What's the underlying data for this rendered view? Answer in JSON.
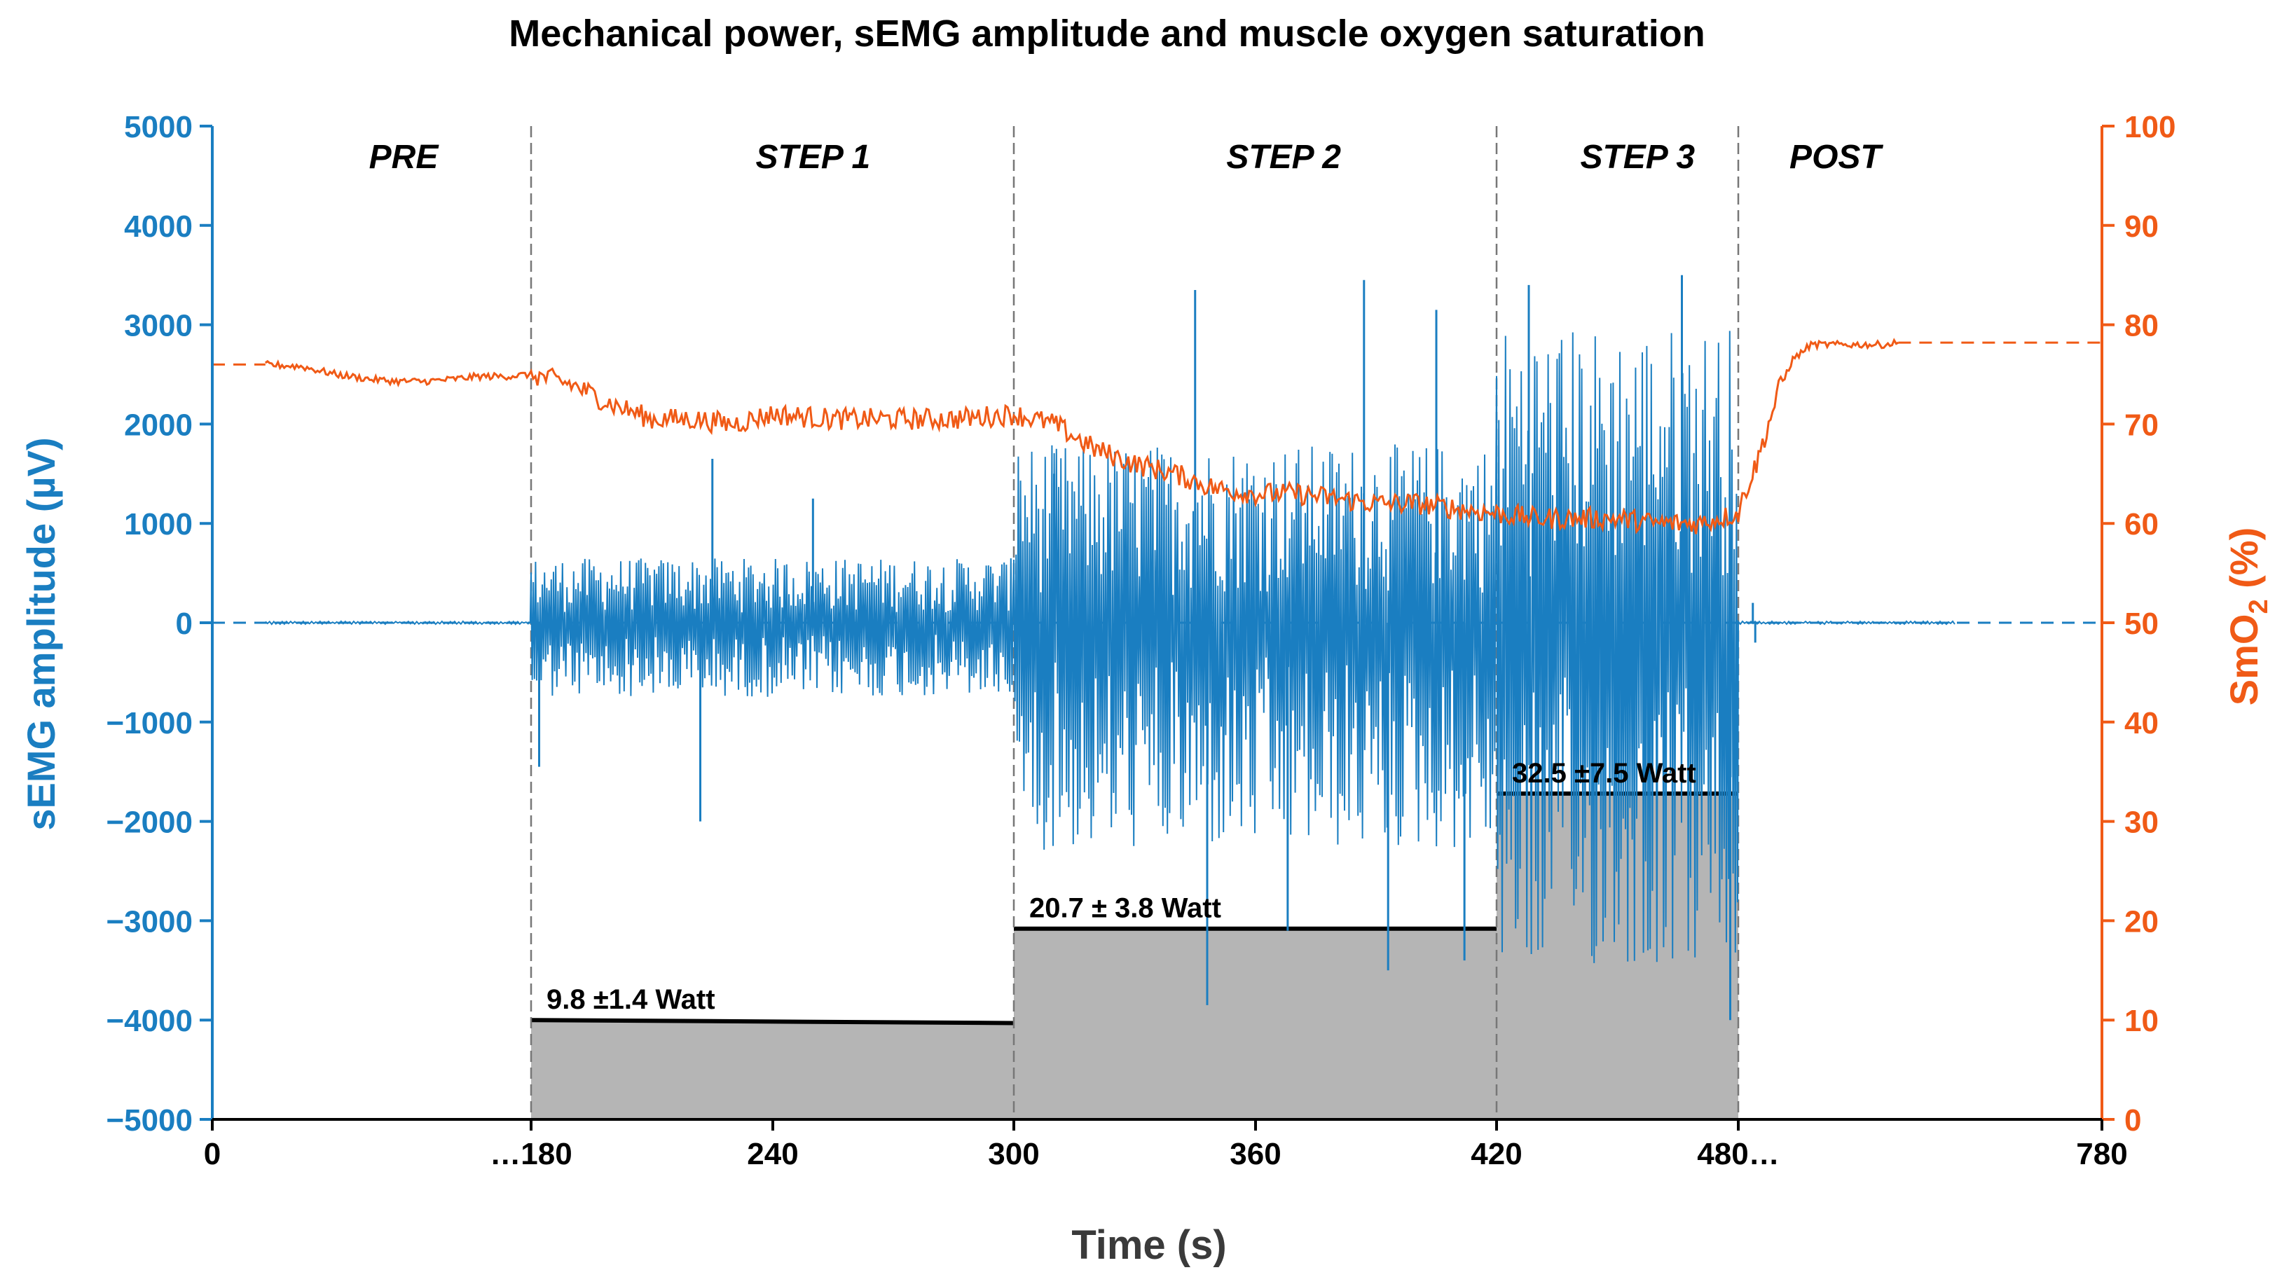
{
  "chart_data": {
    "type": "line",
    "title": "Mechanical power, sEMG amplitude and muscle oxygen saturation",
    "xlabel": "Time (s)",
    "ylabel_left": "sEMG amplitude (µV)",
    "ylabel_right_main": "SmO",
    "ylabel_right_sub": "2",
    "ylabel_right_unit": " (%)",
    "x_tick_labels": [
      "0",
      "…180",
      "240",
      "300",
      "360",
      "420",
      "480…",
      "780"
    ],
    "x_tick_values": [
      0,
      180,
      240,
      300,
      360,
      420,
      480,
      780
    ],
    "ylim_left": [
      -5000,
      5000
    ],
    "y_left_ticks": [
      5000,
      4000,
      3000,
      2000,
      1000,
      0,
      -1000,
      -2000,
      -3000,
      -4000,
      -5000
    ],
    "ylim_right": [
      0,
      100
    ],
    "y_right_ticks": [
      100,
      90,
      80,
      70,
      60,
      50,
      40,
      30,
      20,
      10,
      0
    ],
    "phases": [
      {
        "label": "PRE",
        "center": 108
      },
      {
        "label": "STEP 1",
        "center": 250
      },
      {
        "label": "STEP 2",
        "center": 367
      },
      {
        "label": "STEP 3",
        "center": 455
      },
      {
        "label": "POST",
        "center": 560
      }
    ],
    "phase_boundaries": [
      180,
      300,
      420,
      480
    ],
    "power_steps": [
      {
        "label": "9.8 ±1.4 Watt",
        "x_start": 180,
        "x_end": 300,
        "level": -4000,
        "level_end": -4030
      },
      {
        "label": "20.7 ± 3.8 Watt",
        "x_start": 300,
        "x_end": 420,
        "level": -3080,
        "level_end": -3080
      },
      {
        "label": "32.5 ±7.5 Watt",
        "x_start": 420,
        "x_end": 480,
        "level": -1720,
        "level_end": -1720
      }
    ],
    "series": [
      {
        "name": "sEMG amplitude",
        "axis": "left",
        "color": "#1a7ec1",
        "baseline": 0,
        "envelope_segments": [
          {
            "x_start": 30,
            "x_end": 180,
            "amp_pos": 15,
            "amp_neg": 15
          },
          {
            "x_start": 180,
            "x_end": 300,
            "amp_pos": 650,
            "amp_neg": 750
          },
          {
            "x_start": 300,
            "x_end": 420,
            "amp_pos": 1800,
            "amp_neg": 2300
          },
          {
            "x_start": 420,
            "x_end": 480,
            "amp_pos": 3000,
            "amp_neg": 3500
          },
          {
            "x_start": 480,
            "x_end": 660,
            "amp_pos": 15,
            "amp_neg": 15
          }
        ],
        "spikes": [
          {
            "x": 225,
            "y": 1650
          },
          {
            "x": 222,
            "y": -2000
          },
          {
            "x": 182,
            "y": -1450
          },
          {
            "x": 250,
            "y": 1250
          },
          {
            "x": 310,
            "y": 1500
          },
          {
            "x": 345,
            "y": 3350
          },
          {
            "x": 348,
            "y": -3850
          },
          {
            "x": 368,
            "y": -3100
          },
          {
            "x": 387,
            "y": 3450
          },
          {
            "x": 393,
            "y": -3500
          },
          {
            "x": 405,
            "y": 3150
          },
          {
            "x": 412,
            "y": -3400
          },
          {
            "x": 428,
            "y": 3400
          },
          {
            "x": 466,
            "y": 3500
          },
          {
            "x": 478,
            "y": -4000
          },
          {
            "x": 492,
            "y": 200
          },
          {
            "x": 494,
            "y": -200
          }
        ],
        "dashed_extension": {
          "x_from": 0,
          "x_to": 780,
          "y": 0
        }
      },
      {
        "name": "SmO2",
        "axis": "right",
        "color": "#f05a16",
        "points": [
          [
            30,
            76
          ],
          [
            50,
            75.8
          ],
          [
            70,
            75
          ],
          [
            90,
            74.5
          ],
          [
            105,
            74.3
          ],
          [
            120,
            74.3
          ],
          [
            135,
            74.5
          ],
          [
            150,
            74.8
          ],
          [
            165,
            74.8
          ],
          [
            180,
            75
          ],
          [
            190,
            74
          ],
          [
            200,
            72
          ],
          [
            210,
            70.5
          ],
          [
            220,
            70.5
          ],
          [
            230,
            70
          ],
          [
            240,
            71
          ],
          [
            255,
            70.5
          ],
          [
            270,
            70.5
          ],
          [
            285,
            70.5
          ],
          [
            300,
            71
          ],
          [
            310,
            70
          ],
          [
            320,
            67.5
          ],
          [
            330,
            66
          ],
          [
            340,
            65
          ],
          [
            350,
            63.5
          ],
          [
            360,
            63
          ],
          [
            370,
            63
          ],
          [
            380,
            62.5
          ],
          [
            390,
            62
          ],
          [
            400,
            62
          ],
          [
            410,
            61.5
          ],
          [
            420,
            61
          ],
          [
            430,
            60.5
          ],
          [
            440,
            60.5
          ],
          [
            450,
            60.5
          ],
          [
            460,
            60
          ],
          [
            470,
            60
          ],
          [
            480,
            61
          ],
          [
            485,
            63
          ],
          [
            495,
            66
          ],
          [
            505,
            70
          ],
          [
            515,
            74
          ],
          [
            525,
            76.5
          ],
          [
            540,
            78
          ],
          [
            560,
            78
          ],
          [
            580,
            78
          ],
          [
            600,
            78
          ],
          [
            612,
            78.2
          ]
        ],
        "dashed_extension": [
          {
            "x_from": 0,
            "x_to": 30,
            "y": 76
          },
          {
            "x_from": 612,
            "x_to": 780,
            "y": 78.2
          }
        ]
      }
    ]
  }
}
